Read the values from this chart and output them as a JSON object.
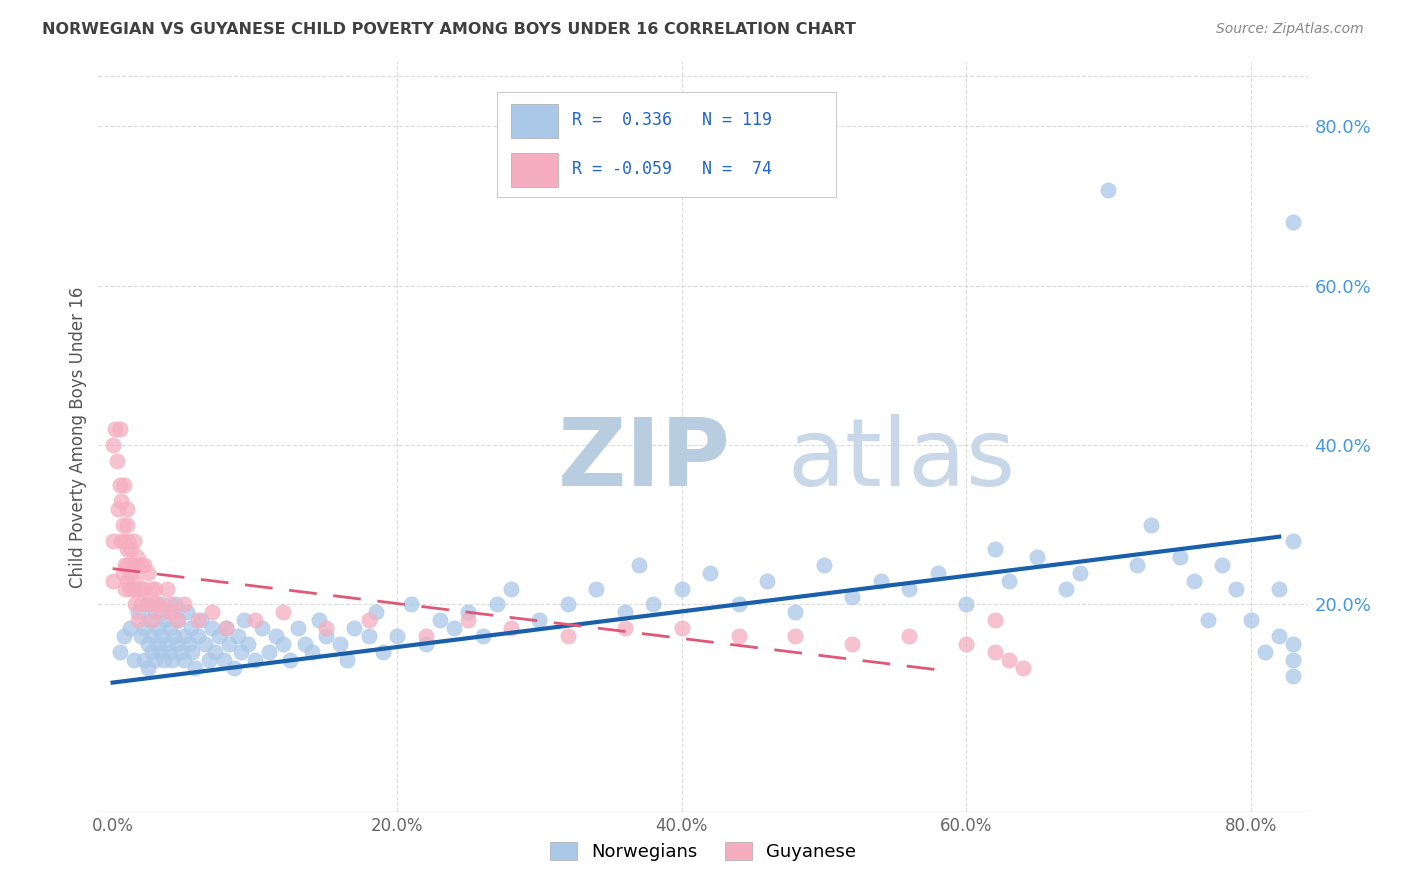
{
  "title": "NORWEGIAN VS GUYANESE CHILD POVERTY AMONG BOYS UNDER 16 CORRELATION CHART",
  "source": "Source: ZipAtlas.com",
  "xlabel_ticks": [
    "0.0%",
    "20.0%",
    "40.0%",
    "60.0%",
    "80.0%"
  ],
  "ylabel_ticks": [
    "20.0%",
    "40.0%",
    "60.0%",
    "80.0%"
  ],
  "xlabel_tick_vals": [
    0.0,
    0.2,
    0.4,
    0.6,
    0.8
  ],
  "ylabel_tick_vals": [
    0.2,
    0.4,
    0.6,
    0.8
  ],
  "right_tick_color": "#4499dd",
  "xlim": [
    -0.01,
    0.84
  ],
  "ylim": [
    -0.06,
    0.88
  ],
  "ylabel": "Child Poverty Among Boys Under 16",
  "legend_labels": [
    "Norwegians",
    "Guyanese"
  ],
  "norwegian_color": "#aac8e8",
  "guyanese_color": "#f5aec0",
  "norwegian_line_color": "#1a5faa",
  "guyanese_line_color": "#e05878",
  "watermark_zip": "ZIP",
  "watermark_atlas": "atlas",
  "watermark_color": "#ccddf0",
  "background_color": "#ffffff",
  "grid_color": "#cccccc",
  "title_color": "#404040",
  "nor_line_start_x": 0.0,
  "nor_line_start_y": 0.102,
  "nor_line_end_x": 0.82,
  "nor_line_end_y": 0.285,
  "guy_line_start_x": 0.0,
  "guy_line_start_y": 0.245,
  "guy_line_end_x": 0.58,
  "guy_line_end_y": 0.118,
  "norwegian_x": [
    0.005,
    0.008,
    0.012,
    0.015,
    0.018,
    0.02,
    0.022,
    0.022,
    0.024,
    0.025,
    0.025,
    0.026,
    0.028,
    0.028,
    0.03,
    0.03,
    0.032,
    0.032,
    0.033,
    0.034,
    0.035,
    0.036,
    0.037,
    0.038,
    0.04,
    0.04,
    0.041,
    0.042,
    0.043,
    0.044,
    0.045,
    0.046,
    0.048,
    0.05,
    0.05,
    0.052,
    0.054,
    0.055,
    0.056,
    0.058,
    0.06,
    0.062,
    0.065,
    0.068,
    0.07,
    0.072,
    0.075,
    0.078,
    0.08,
    0.082,
    0.085,
    0.088,
    0.09,
    0.092,
    0.095,
    0.1,
    0.105,
    0.11,
    0.115,
    0.12,
    0.125,
    0.13,
    0.135,
    0.14,
    0.145,
    0.15,
    0.16,
    0.165,
    0.17,
    0.18,
    0.185,
    0.19,
    0.2,
    0.21,
    0.22,
    0.23,
    0.24,
    0.25,
    0.26,
    0.27,
    0.28,
    0.3,
    0.32,
    0.34,
    0.36,
    0.37,
    0.38,
    0.4,
    0.42,
    0.44,
    0.46,
    0.48,
    0.5,
    0.52,
    0.54,
    0.56,
    0.58,
    0.6,
    0.62,
    0.63,
    0.65,
    0.67,
    0.68,
    0.7,
    0.72,
    0.73,
    0.75,
    0.76,
    0.77,
    0.78,
    0.79,
    0.8,
    0.81,
    0.82,
    0.82,
    0.83,
    0.83,
    0.83,
    0.83,
    0.83
  ],
  "norwegian_y": [
    0.14,
    0.16,
    0.17,
    0.13,
    0.19,
    0.16,
    0.17,
    0.13,
    0.2,
    0.15,
    0.12,
    0.18,
    0.16,
    0.14,
    0.13,
    0.19,
    0.17,
    0.15,
    0.14,
    0.2,
    0.16,
    0.13,
    0.18,
    0.15,
    0.17,
    0.14,
    0.19,
    0.13,
    0.16,
    0.2,
    0.15,
    0.18,
    0.14,
    0.16,
    0.13,
    0.19,
    0.15,
    0.17,
    0.14,
    0.12,
    0.16,
    0.18,
    0.15,
    0.13,
    0.17,
    0.14,
    0.16,
    0.13,
    0.17,
    0.15,
    0.12,
    0.16,
    0.14,
    0.18,
    0.15,
    0.13,
    0.17,
    0.14,
    0.16,
    0.15,
    0.13,
    0.17,
    0.15,
    0.14,
    0.18,
    0.16,
    0.15,
    0.13,
    0.17,
    0.16,
    0.19,
    0.14,
    0.16,
    0.2,
    0.15,
    0.18,
    0.17,
    0.19,
    0.16,
    0.2,
    0.22,
    0.18,
    0.2,
    0.22,
    0.19,
    0.25,
    0.2,
    0.22,
    0.24,
    0.2,
    0.23,
    0.19,
    0.25,
    0.21,
    0.23,
    0.22,
    0.24,
    0.2,
    0.27,
    0.23,
    0.26,
    0.22,
    0.24,
    0.72,
    0.25,
    0.3,
    0.26,
    0.23,
    0.18,
    0.25,
    0.22,
    0.18,
    0.14,
    0.22,
    0.16,
    0.13,
    0.68,
    0.11,
    0.28,
    0.15
  ],
  "guyanese_x": [
    0.0,
    0.0,
    0.0,
    0.002,
    0.003,
    0.004,
    0.005,
    0.005,
    0.006,
    0.006,
    0.007,
    0.007,
    0.008,
    0.008,
    0.009,
    0.009,
    0.01,
    0.01,
    0.01,
    0.01,
    0.01,
    0.011,
    0.012,
    0.012,
    0.013,
    0.013,
    0.014,
    0.015,
    0.015,
    0.016,
    0.016,
    0.017,
    0.018,
    0.018,
    0.02,
    0.02,
    0.02,
    0.022,
    0.022,
    0.025,
    0.025,
    0.028,
    0.028,
    0.03,
    0.03,
    0.032,
    0.035,
    0.038,
    0.04,
    0.042,
    0.045,
    0.05,
    0.06,
    0.07,
    0.08,
    0.1,
    0.12,
    0.15,
    0.18,
    0.22,
    0.25,
    0.28,
    0.32,
    0.36,
    0.4,
    0.44,
    0.48,
    0.52,
    0.56,
    0.6,
    0.62,
    0.62,
    0.63,
    0.64
  ],
  "guyanese_y": [
    0.4,
    0.28,
    0.23,
    0.42,
    0.38,
    0.32,
    0.35,
    0.42,
    0.28,
    0.33,
    0.24,
    0.3,
    0.35,
    0.28,
    0.25,
    0.22,
    0.3,
    0.27,
    0.25,
    0.23,
    0.32,
    0.28,
    0.25,
    0.22,
    0.27,
    0.24,
    0.22,
    0.28,
    0.25,
    0.23,
    0.2,
    0.26,
    0.22,
    0.18,
    0.25,
    0.22,
    0.2,
    0.25,
    0.22,
    0.24,
    0.2,
    0.22,
    0.18,
    0.22,
    0.2,
    0.2,
    0.19,
    0.22,
    0.2,
    0.19,
    0.18,
    0.2,
    0.18,
    0.19,
    0.17,
    0.18,
    0.19,
    0.17,
    0.18,
    0.16,
    0.18,
    0.17,
    0.16,
    0.17,
    0.17,
    0.16,
    0.16,
    0.15,
    0.16,
    0.15,
    0.14,
    0.18,
    0.13,
    0.12
  ]
}
